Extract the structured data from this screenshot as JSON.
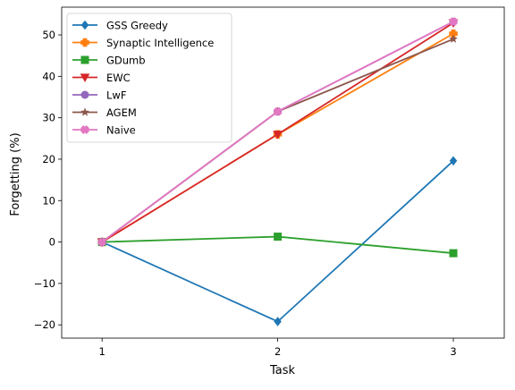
{
  "chart_data": {
    "type": "line",
    "title": "",
    "xlabel": "Task",
    "ylabel": "Forgetting (%)",
    "x": [
      1,
      2,
      3
    ],
    "x_ticks": [
      "1",
      "2",
      "3"
    ],
    "xlim": [
      0.77,
      3.29
    ],
    "ylim": [
      -23.2,
      56.7
    ],
    "y_ticks": [
      -20,
      -10,
      0,
      10,
      20,
      30,
      40,
      50
    ],
    "grid": false,
    "legend_position": "top-left",
    "series": [
      {
        "name": "GSS Greedy",
        "values": [
          0,
          -19.2,
          19.6
        ],
        "color": "#1f77b4",
        "marker": "diamond"
      },
      {
        "name": "Synaptic Intelligence",
        "values": [
          0,
          26.0,
          50.3
        ],
        "color": "#ff7f0e",
        "marker": "plus"
      },
      {
        "name": "GDumb",
        "values": [
          0,
          1.3,
          -2.7
        ],
        "color": "#2ca02c",
        "marker": "square"
      },
      {
        "name": "EWC",
        "values": [
          0,
          26.0,
          52.9
        ],
        "color": "#d62728",
        "marker": "triangle-down"
      },
      {
        "name": "LwF",
        "values": [
          0,
          31.5,
          53.2
        ],
        "color": "#9467bd",
        "marker": "circle"
      },
      {
        "name": "AGEM",
        "values": [
          0,
          31.5,
          49.0
        ],
        "color": "#8c564b",
        "marker": "star"
      },
      {
        "name": "Naive",
        "values": [
          0,
          31.5,
          53.2
        ],
        "color": "#e377c2",
        "marker": "x-filled"
      }
    ]
  }
}
